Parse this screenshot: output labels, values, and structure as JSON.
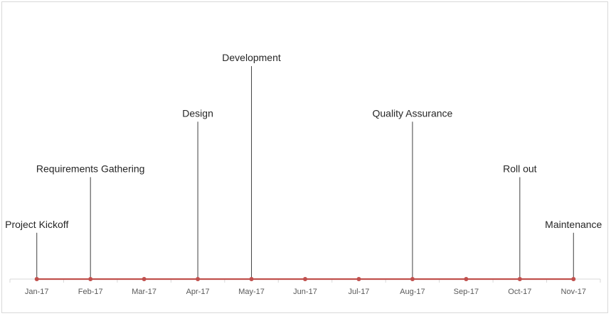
{
  "chart_data": {
    "type": "line",
    "title": "",
    "xlabel": "",
    "ylabel": "",
    "categories": [
      "Jan-17",
      "Feb-17",
      "Mar-17",
      "Apr-17",
      "May-17",
      "Jun-17",
      "Jul-17",
      "Aug-17",
      "Sep-17",
      "Oct-17",
      "Nov-17"
    ],
    "milestones": [
      {
        "label": "Project Kickoff",
        "date": "Jan-17",
        "height": 1
      },
      {
        "label": "Requirements Gathering",
        "date": "Feb-17",
        "height": 2
      },
      {
        "label": "Design",
        "date": "Apr-17",
        "height": 3
      },
      {
        "label": "Development",
        "date": "May-17",
        "height": 4
      },
      {
        "label": "Quality Assurance",
        "date": "Aug-17",
        "height": 3
      },
      {
        "label": "Roll out",
        "date": "Oct-17",
        "height": 2
      },
      {
        "label": "Maintenance",
        "date": "Nov-17",
        "height": 1
      }
    ],
    "ylim": [
      0,
      4.5
    ],
    "grid": false,
    "legend": "none",
    "colors": {
      "timeline": "#c0504d",
      "stem": "#404040",
      "axis": "#d9d9d9"
    }
  }
}
